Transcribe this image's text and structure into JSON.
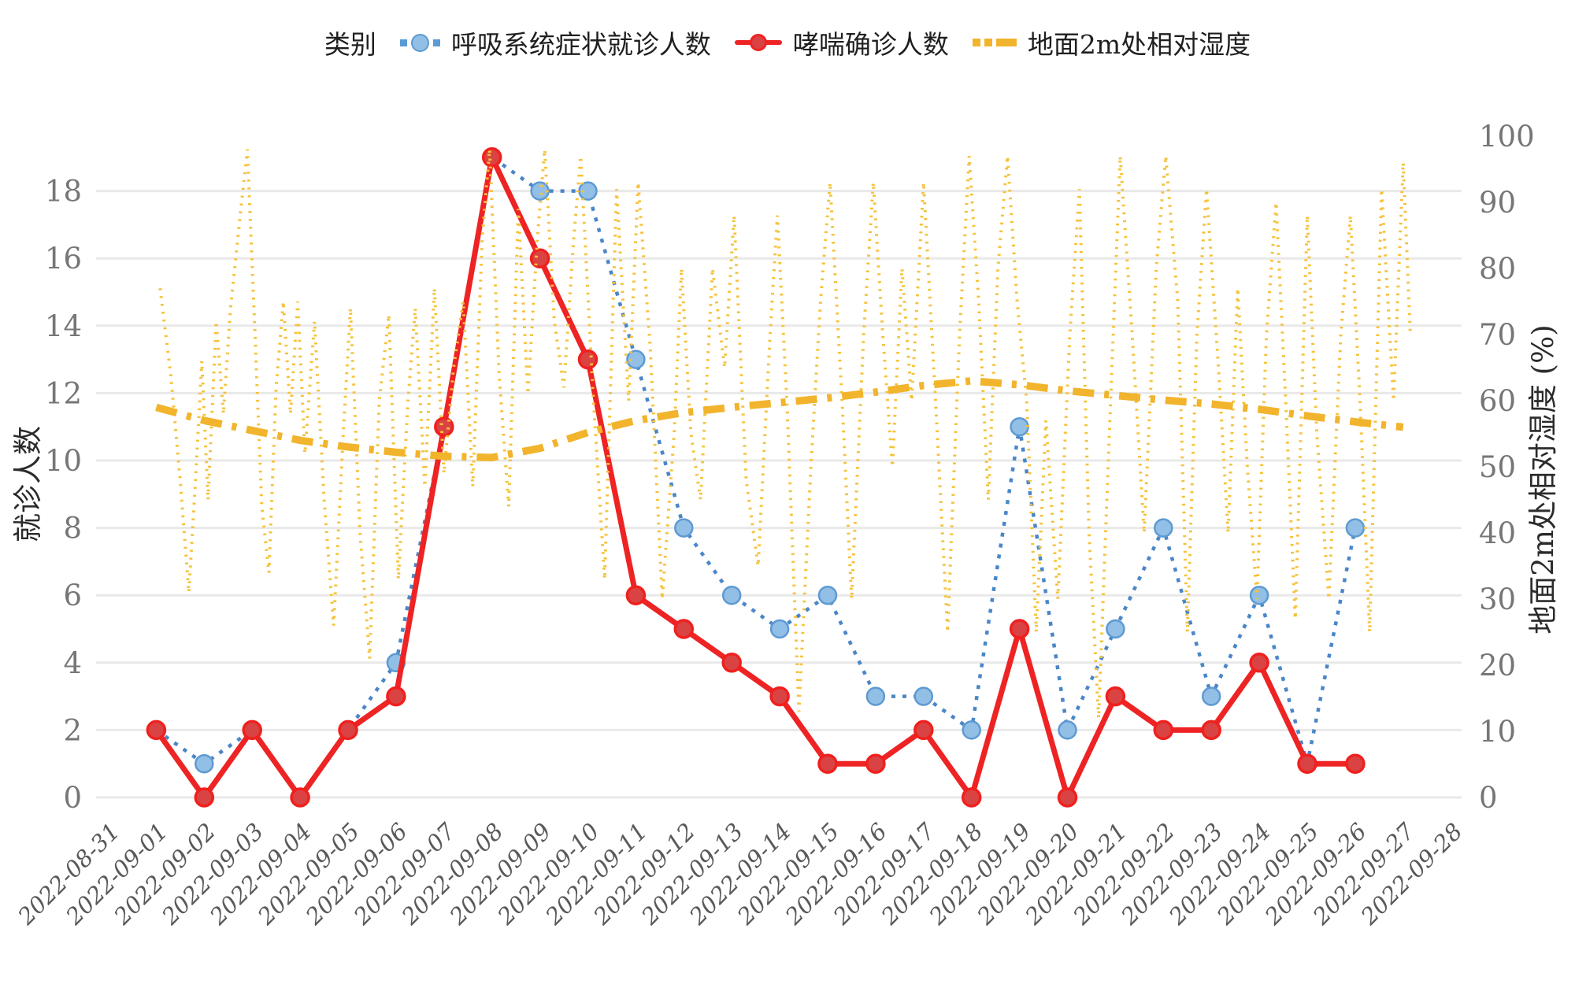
{
  "legend": {
    "title": "类别",
    "items": [
      {
        "label": "呼吸系统症状就诊人数",
        "color": "#5b9bd5",
        "marker": "dotted-line-circle"
      },
      {
        "label": "哮喘确诊人数",
        "color": "#ee2324",
        "marker": "solid-line-circle"
      },
      {
        "label": "地面2m处相对湿度",
        "color": "#f1b42c",
        "marker": "dash-dot-line"
      }
    ]
  },
  "chart_data": {
    "type": "line",
    "grid": true,
    "legend_position": "top",
    "categories": [
      "2022-08-31",
      "2022-09-01",
      "2022-09-02",
      "2022-09-03",
      "2022-09-04",
      "2022-09-05",
      "2022-09-06",
      "2022-09-07",
      "2022-09-08",
      "2022-09-09",
      "2022-09-10",
      "2022-09-11",
      "2022-09-12",
      "2022-09-13",
      "2022-09-14",
      "2022-09-15",
      "2022-09-16",
      "2022-09-17",
      "2022-09-18",
      "2022-09-19",
      "2022-09-20",
      "2022-09-21",
      "2022-09-22",
      "2022-09-23",
      "2022-09-24",
      "2022-09-25",
      "2022-09-26",
      "2022-09-27",
      "2022-09-28"
    ],
    "left_axis": {
      "title": "就诊人数",
      "min": 0,
      "max": 18,
      "ticks": [
        0,
        2,
        4,
        6,
        8,
        10,
        12,
        14,
        16,
        18
      ]
    },
    "right_axis": {
      "title": "地面2m处相对湿度 (%)",
      "min": 0,
      "max": 100,
      "ticks": [
        0,
        10,
        20,
        30,
        40,
        50,
        60,
        70,
        80,
        90,
        100
      ]
    },
    "series": [
      {
        "name": "呼吸系统症状就诊人数",
        "axis": "left",
        "style": "dotted",
        "marker": "circle",
        "line_color": "#4a86c8",
        "marker_fill": "#92bfe6",
        "marker_stroke": "#5e9ad2",
        "start_index": 1,
        "values": [
          2,
          1,
          2,
          0,
          2,
          4,
          11,
          19,
          18,
          18,
          13,
          8,
          6,
          5,
          6,
          3,
          3,
          2,
          11,
          2,
          5,
          8,
          3,
          6,
          1,
          8
        ]
      },
      {
        "name": "哮喘确诊人数",
        "axis": "left",
        "style": "solid",
        "marker": "circle",
        "line_color": "#ee2324",
        "marker_fill": "#da4343",
        "marker_stroke": "#f0201f",
        "start_index": 1,
        "values": [
          2,
          0,
          2,
          0,
          2,
          3,
          11,
          19,
          16,
          13,
          6,
          5,
          4,
          3,
          1,
          1,
          2,
          0,
          5,
          0,
          3,
          2,
          2,
          4,
          1,
          1
        ]
      },
      {
        "name": "地面2m处相对湿度(小时值)",
        "axis": "right",
        "style": "dotted",
        "marker": "none",
        "line_color": "#f6c23a",
        "points": [
          [
            1.08,
            77
          ],
          [
            1.3,
            64
          ],
          [
            1.5,
            48
          ],
          [
            1.68,
            31
          ],
          [
            1.82,
            48
          ],
          [
            1.95,
            66
          ],
          [
            2.08,
            45
          ],
          [
            2.25,
            72
          ],
          [
            2.4,
            58
          ],
          [
            2.55,
            74
          ],
          [
            2.75,
            88
          ],
          [
            2.9,
            98
          ],
          [
            3.05,
            72
          ],
          [
            3.2,
            44
          ],
          [
            3.35,
            34
          ],
          [
            3.5,
            62
          ],
          [
            3.65,
            75
          ],
          [
            3.8,
            58
          ],
          [
            3.95,
            75
          ],
          [
            4.1,
            52
          ],
          [
            4.3,
            72
          ],
          [
            4.5,
            45
          ],
          [
            4.7,
            26
          ],
          [
            4.9,
            55
          ],
          [
            5.05,
            74
          ],
          [
            5.25,
            40
          ],
          [
            5.45,
            21
          ],
          [
            5.65,
            60
          ],
          [
            5.85,
            73
          ],
          [
            6.05,
            33
          ],
          [
            6.25,
            60
          ],
          [
            6.4,
            74
          ],
          [
            6.6,
            47
          ],
          [
            6.8,
            77
          ],
          [
            7.0,
            49
          ],
          [
            7.2,
            65
          ],
          [
            7.4,
            75
          ],
          [
            7.6,
            47
          ],
          [
            7.8,
            85
          ],
          [
            7.95,
            98
          ],
          [
            8.15,
            64
          ],
          [
            8.35,
            44
          ],
          [
            8.55,
            89
          ],
          [
            8.75,
            61
          ],
          [
            8.95,
            85
          ],
          [
            9.1,
            98
          ],
          [
            9.3,
            72
          ],
          [
            9.5,
            62
          ],
          [
            9.7,
            84
          ],
          [
            9.85,
            97
          ],
          [
            10.1,
            62
          ],
          [
            10.35,
            33
          ],
          [
            10.6,
            92
          ],
          [
            10.85,
            60
          ],
          [
            11.05,
            93
          ],
          [
            11.3,
            68
          ],
          [
            11.55,
            30
          ],
          [
            11.8,
            55
          ],
          [
            11.95,
            80
          ],
          [
            12.15,
            55
          ],
          [
            12.35,
            45
          ],
          [
            12.6,
            80
          ],
          [
            12.85,
            65
          ],
          [
            13.05,
            88
          ],
          [
            13.3,
            48
          ],
          [
            13.55,
            35
          ],
          [
            13.8,
            70
          ],
          [
            13.95,
            88
          ],
          [
            14.15,
            60
          ],
          [
            14.4,
            13
          ],
          [
            14.65,
            50
          ],
          [
            14.85,
            75
          ],
          [
            15.05,
            93
          ],
          [
            15.3,
            60
          ],
          [
            15.5,
            30
          ],
          [
            15.75,
            70
          ],
          [
            15.95,
            93
          ],
          [
            16.15,
            70
          ],
          [
            16.35,
            50
          ],
          [
            16.55,
            80
          ],
          [
            16.75,
            60
          ],
          [
            17.0,
            93
          ],
          [
            17.25,
            60
          ],
          [
            17.5,
            25
          ],
          [
            17.75,
            70
          ],
          [
            17.95,
            97
          ],
          [
            18.15,
            75
          ],
          [
            18.35,
            45
          ],
          [
            18.55,
            80
          ],
          [
            18.75,
            97
          ],
          [
            18.95,
            75
          ],
          [
            19.15,
            60
          ],
          [
            19.35,
            25
          ],
          [
            19.55,
            57
          ],
          [
            19.8,
            30
          ],
          [
            20.05,
            70
          ],
          [
            20.25,
            92
          ],
          [
            20.45,
            40
          ],
          [
            20.65,
            12
          ],
          [
            20.9,
            60
          ],
          [
            21.1,
            97
          ],
          [
            21.35,
            70
          ],
          [
            21.6,
            40
          ],
          [
            21.85,
            80
          ],
          [
            22.05,
            97
          ],
          [
            22.3,
            75
          ],
          [
            22.5,
            25
          ],
          [
            22.7,
            70
          ],
          [
            22.9,
            92
          ],
          [
            23.15,
            65
          ],
          [
            23.35,
            40
          ],
          [
            23.55,
            77
          ],
          [
            23.75,
            50
          ],
          [
            23.95,
            30
          ],
          [
            24.15,
            70
          ],
          [
            24.35,
            90
          ],
          [
            24.55,
            60
          ],
          [
            24.75,
            27
          ],
          [
            25.0,
            88
          ],
          [
            25.2,
            55
          ],
          [
            25.45,
            30
          ],
          [
            25.7,
            70
          ],
          [
            25.9,
            88
          ],
          [
            26.1,
            60
          ],
          [
            26.3,
            25
          ],
          [
            26.55,
            92
          ],
          [
            26.8,
            60
          ],
          [
            27.0,
            96
          ],
          [
            27.15,
            70
          ]
        ]
      },
      {
        "name": "地面2m处相对湿度(趋势)",
        "axis": "right",
        "style": "dash-dot",
        "marker": "none",
        "line_color": "#f1b42c",
        "start_index": 1,
        "values": [
          59,
          57,
          55.5,
          54,
          53,
          52.2,
          51.6,
          51.4,
          52.8,
          55.2,
          57,
          58.2,
          59,
          59.7,
          60.4,
          61.3,
          62.3,
          63,
          62.4,
          61.5,
          60.8,
          60.1,
          59.5,
          58.7,
          57.7,
          56.8,
          56
        ]
      }
    ]
  },
  "style": {
    "grid_color": "#e9e9e9",
    "tick_label_color": "#767676",
    "date_label_color": "#595959"
  }
}
